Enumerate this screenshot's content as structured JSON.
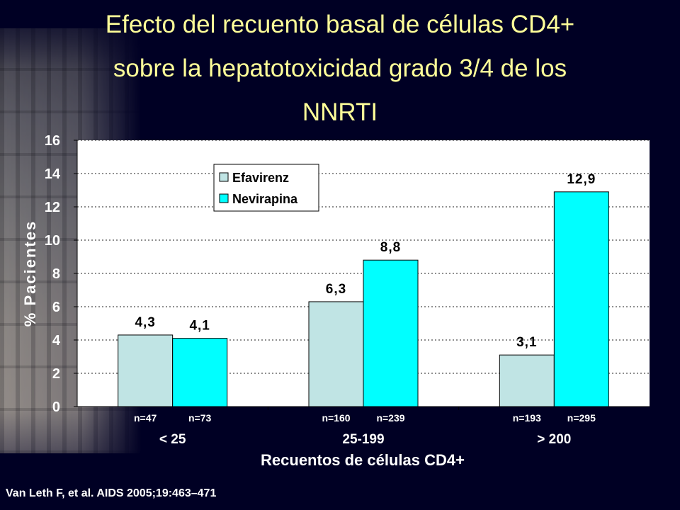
{
  "title_lines": [
    "Efecto del recuento basal de células CD4+",
    "sobre la hepatotoxicidad grado 3/4 de los",
    "NNRTI"
  ],
  "citation": "Van Leth F, et al. AIDS 2005;19:463–471",
  "chart_data": {
    "type": "bar",
    "categories": [
      "< 25",
      "25-199",
      "> 200"
    ],
    "series": [
      {
        "name": "Efavirenz",
        "color": "#c0e4e4",
        "values": [
          4.3,
          6.3,
          3.1
        ],
        "labels": [
          "4,3",
          "6,3",
          "3,1"
        ],
        "n_labels": [
          "n=47",
          "n=160",
          "n=193"
        ]
      },
      {
        "name": "Nevirapina",
        "color": "#00ffff",
        "values": [
          4.1,
          8.8,
          12.9
        ],
        "labels": [
          "4,1",
          "8,8",
          "12,9"
        ],
        "n_labels": [
          "n=73",
          "n=239",
          "n=295"
        ]
      }
    ],
    "xlabel": "Recuentos de células CD4+",
    "ylabel": "% Pacientes",
    "ylim": [
      0,
      16
    ],
    "yticks": [
      0,
      2,
      4,
      6,
      8,
      10,
      12,
      14,
      16
    ],
    "grid": true,
    "legend_position": "top-left",
    "plot_background": "#ffffff",
    "page_background": "#000024",
    "title_color": "#ffff99"
  }
}
